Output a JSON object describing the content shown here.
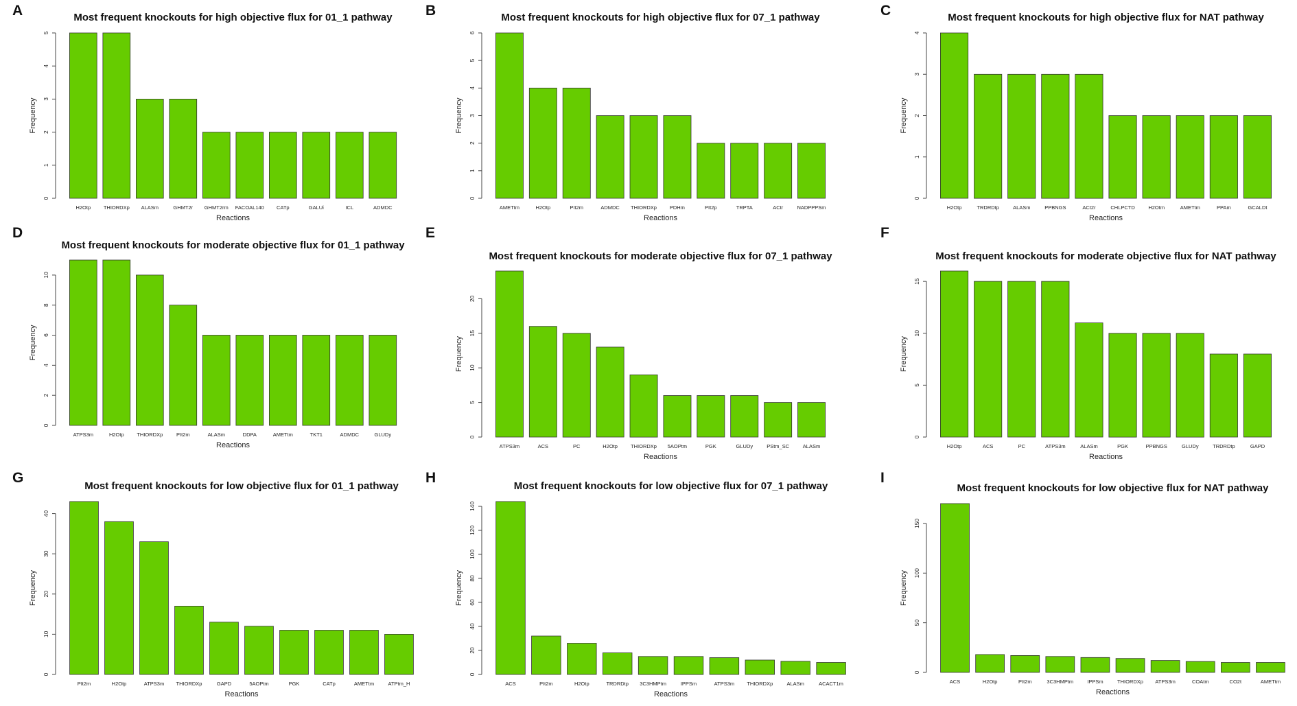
{
  "figure": {
    "panels": [
      "A",
      "B",
      "C",
      "D",
      "E",
      "F",
      "G",
      "H",
      "I"
    ],
    "bar_color": "#66cc00"
  },
  "chart_data": [
    {
      "panel": "A",
      "type": "bar",
      "title": "Most frequent knockouts for high objective flux for 01_1 pathway",
      "xlabel": "Reactions",
      "ylabel": "Frequency",
      "categories": [
        "H2Otp",
        "THIORDXp",
        "ALASm",
        "GHMT2r",
        "GHMT2rm",
        "FACOAL140",
        "CATp",
        "GALUi",
        "ICL",
        "ADMDC"
      ],
      "values": [
        5,
        5,
        3,
        3,
        2,
        2,
        2,
        2,
        2,
        2
      ],
      "ylim": [
        0,
        5
      ],
      "yticks": [
        0,
        1,
        2,
        3,
        4,
        5
      ]
    },
    {
      "panel": "B",
      "type": "bar",
      "title": "Most frequent knockouts for high objective flux for 07_1 pathway",
      "xlabel": "Reactions",
      "ylabel": "Frequency",
      "categories": [
        "AMETtm",
        "H2Otp",
        "PIt2m",
        "ADMDC",
        "THIORDXp",
        "PDHm",
        "PIt2p",
        "TRPTA",
        "ACtr",
        "NADPPPSm"
      ],
      "values": [
        6,
        4,
        4,
        3,
        3,
        3,
        2,
        2,
        2,
        2
      ],
      "ylim": [
        0,
        6
      ],
      "yticks": [
        0,
        1,
        2,
        3,
        4,
        5,
        6
      ]
    },
    {
      "panel": "C",
      "type": "bar",
      "title": "Most frequent knockouts for high objective flux for NAT pathway",
      "xlabel": "Reactions",
      "ylabel": "Frequency",
      "categories": [
        "H2Otp",
        "TRDRDtp",
        "ALASm",
        "PPBNGS",
        "ACt2r",
        "CHLPCTD",
        "H2Otm",
        "AMETtm",
        "PPAm",
        "GCALDt"
      ],
      "values": [
        4,
        3,
        3,
        3,
        3,
        2,
        2,
        2,
        2,
        2
      ],
      "ylim": [
        0,
        4
      ],
      "yticks": [
        0,
        1,
        2,
        3,
        4
      ]
    },
    {
      "panel": "D",
      "type": "bar",
      "title": "Most frequent knockouts for moderate objective flux for 01_1 pathway",
      "xlabel": "Reactions",
      "ylabel": "Frequency",
      "categories": [
        "ATPS3m",
        "H2Otp",
        "THIORDXp",
        "PIt2m",
        "ALASm",
        "DDPA",
        "AMETtm",
        "TKT1",
        "ADMDC",
        "GLUDy"
      ],
      "values": [
        11,
        11,
        10,
        8,
        6,
        6,
        6,
        6,
        6,
        6
      ],
      "ylim": [
        0,
        11
      ],
      "yticks": [
        0,
        2,
        4,
        6,
        8,
        10
      ]
    },
    {
      "panel": "E",
      "type": "bar",
      "title": "Most frequent knockouts for moderate objective flux for 07_1 pathway",
      "xlabel": "Reactions",
      "ylabel": "Frequency",
      "categories": [
        "ATPS3m",
        "ACS",
        "PC",
        "H2Otp",
        "THIORDXp",
        "5AOPtm",
        "PGK",
        "GLUDy",
        "PStm_SC",
        "ALASm"
      ],
      "values": [
        24,
        16,
        15,
        13,
        9,
        6,
        6,
        6,
        5,
        5
      ],
      "ylim": [
        0,
        24
      ],
      "yticks": [
        0,
        5,
        10,
        15,
        20
      ]
    },
    {
      "panel": "F",
      "type": "bar",
      "title": "Most frequent knockouts for moderate objective flux for NAT pathway",
      "xlabel": "Reactions",
      "ylabel": "Frequency",
      "categories": [
        "H2Otp",
        "ACS",
        "PC",
        "ATPS3m",
        "ALASm",
        "PGK",
        "PPBNGS",
        "GLUDy",
        "TRDRDtp",
        "GAPD"
      ],
      "values": [
        16,
        15,
        15,
        15,
        11,
        10,
        10,
        10,
        8,
        8
      ],
      "ylim": [
        0,
        16
      ],
      "yticks": [
        0,
        5,
        10,
        15
      ]
    },
    {
      "panel": "G",
      "type": "bar",
      "title": "Most frequent knockouts for low objective flux for 01_1 pathway",
      "xlabel": "Reactions",
      "ylabel": "Frequency",
      "categories": [
        "PIt2m",
        "H2Otp",
        "ATPS3m",
        "THIORDXp",
        "GAPD",
        "5AOPtm",
        "PGK",
        "CATp",
        "AMETtm",
        "ATPtm_H"
      ],
      "values": [
        43,
        38,
        33,
        17,
        13,
        12,
        11,
        11,
        11,
        10
      ],
      "ylim": [
        0,
        43
      ],
      "yticks": [
        0,
        10,
        20,
        30,
        40
      ]
    },
    {
      "panel": "H",
      "type": "bar",
      "title": "Most frequent knockouts for low objective flux for 07_1 pathway",
      "xlabel": "Reactions",
      "ylabel": "Frequency",
      "categories": [
        "ACS",
        "PIt2m",
        "H2Otp",
        "TRDRDtp",
        "3C3HMPtm",
        "IPPSm",
        "ATPS3m",
        "THIORDXp",
        "ALASm",
        "ACACT1m"
      ],
      "values": [
        144,
        32,
        26,
        18,
        15,
        15,
        14,
        12,
        11,
        10
      ],
      "ylim": [
        0,
        144
      ],
      "yticks": [
        0,
        20,
        40,
        60,
        80,
        100,
        120,
        140
      ]
    },
    {
      "panel": "I",
      "type": "bar",
      "title": "Most frequent knockouts for low objective flux for NAT pathway",
      "xlabel": "Reactions",
      "ylabel": "Frequency",
      "categories": [
        "ACS",
        "H2Otp",
        "PIt2m",
        "3C3HMPtm",
        "IPPSm",
        "THIORDXp",
        "ATPS3m",
        "COAtm",
        "CO2t",
        "AMETtm"
      ],
      "values": [
        170,
        18,
        17,
        16,
        15,
        14,
        12,
        11,
        10,
        10
      ],
      "ylim": [
        0,
        170
      ],
      "yticks": [
        0,
        50,
        100,
        150
      ]
    }
  ]
}
